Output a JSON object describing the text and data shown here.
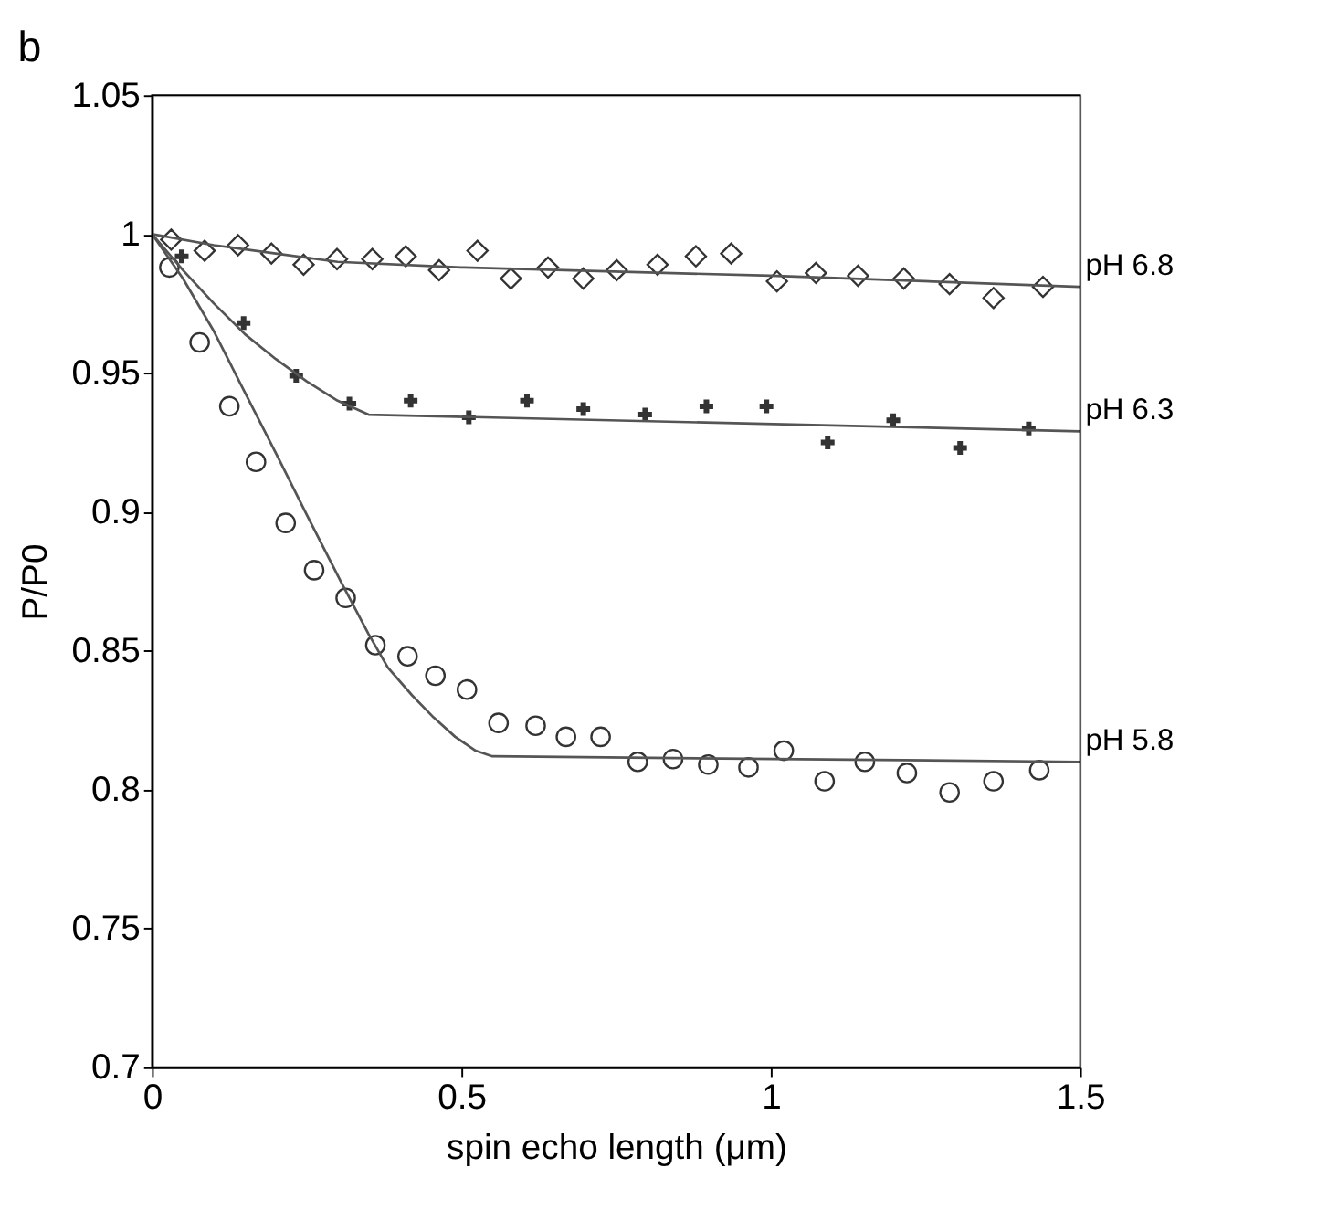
{
  "chart_data": {
    "type": "scatter",
    "title": "b",
    "xlabel": "spin echo length (μm)",
    "ylabel": "P/P0",
    "xlim": [
      0,
      1.5
    ],
    "xticks": [
      0,
      0.5,
      1,
      1.5
    ],
    "ylim": [
      0.7,
      1.05
    ],
    "yticks": [
      0.7,
      0.75,
      0.8,
      0.85,
      0.9,
      0.95,
      1,
      1.05
    ],
    "grid": false,
    "series": [
      {
        "marker": "diamond",
        "color": "#333333",
        "x": [
          0.031,
          0.085,
          0.139,
          0.193,
          0.245,
          0.299,
          0.356,
          0.41,
          0.464,
          0.526,
          0.58,
          0.64,
          0.697,
          0.751,
          0.817,
          0.879,
          0.936,
          1.01,
          1.073,
          1.141,
          1.215,
          1.289,
          1.36,
          1.44
        ],
        "values": [
          0.998,
          0.994,
          0.996,
          0.993,
          0.989,
          0.991,
          0.991,
          0.992,
          0.987,
          0.994,
          0.984,
          0.988,
          0.984,
          0.987,
          0.989,
          0.992,
          0.993,
          0.983,
          0.986,
          0.985,
          0.984,
          0.982,
          0.977,
          0.981
        ]
      },
      {
        "marker": "cross",
        "color": "#333333",
        "x": [
          0.048,
          0.148,
          0.233,
          0.319,
          0.418,
          0.512,
          0.606,
          0.697,
          0.797,
          0.896,
          0.993,
          1.092,
          1.198,
          1.306,
          1.417
        ],
        "values": [
          0.992,
          0.968,
          0.949,
          0.939,
          0.94,
          0.934,
          0.94,
          0.937,
          0.935,
          0.938,
          0.938,
          0.925,
          0.933,
          0.923,
          0.93
        ]
      },
      {
        "marker": "circle",
        "color": "#333333",
        "x": [
          0.028,
          0.077,
          0.125,
          0.168,
          0.216,
          0.262,
          0.313,
          0.361,
          0.413,
          0.458,
          0.509,
          0.56,
          0.62,
          0.669,
          0.725,
          0.785,
          0.842,
          0.899,
          0.964,
          1.021,
          1.087,
          1.152,
          1.22,
          1.289,
          1.36,
          1.434
        ],
        "values": [
          0.988,
          0.961,
          0.938,
          0.918,
          0.896,
          0.879,
          0.869,
          0.852,
          0.848,
          0.841,
          0.836,
          0.824,
          0.823,
          0.819,
          0.819,
          0.81,
          0.811,
          0.809,
          0.808,
          0.814,
          0.803,
          0.81,
          0.806,
          0.799,
          0.803,
          0.807
        ]
      },
      {
        "type": "line",
        "name": "pH 6.8",
        "color": "#555555",
        "line_style": "solid",
        "x": [
          0,
          0.1,
          0.2,
          0.3,
          0.5,
          1.0,
          1.5
        ],
        "values": [
          1.0,
          0.996,
          0.993,
          0.99,
          0.988,
          0.985,
          0.981
        ]
      },
      {
        "type": "line",
        "name": "pH 6.3",
        "color": "#555555",
        "line_style": "solid",
        "x": [
          0,
          0.05,
          0.1,
          0.15,
          0.2,
          0.25,
          0.3,
          0.35,
          1.5
        ],
        "values": [
          1.0,
          0.987,
          0.975,
          0.964,
          0.955,
          0.947,
          0.94,
          0.935,
          0.929
        ]
      },
      {
        "type": "line",
        "name": "pH 5.8",
        "color": "#555555",
        "line_style": "solid",
        "x": [
          0,
          0.05,
          0.1,
          0.15,
          0.205,
          0.25,
          0.305,
          0.35,
          0.381,
          0.42,
          0.455,
          0.49,
          0.523,
          0.55,
          1.5
        ],
        "values": [
          1.0,
          0.984,
          0.965,
          0.943,
          0.919,
          0.899,
          0.875,
          0.856,
          0.844,
          0.834,
          0.826,
          0.819,
          0.814,
          0.812,
          0.81
        ]
      }
    ]
  }
}
